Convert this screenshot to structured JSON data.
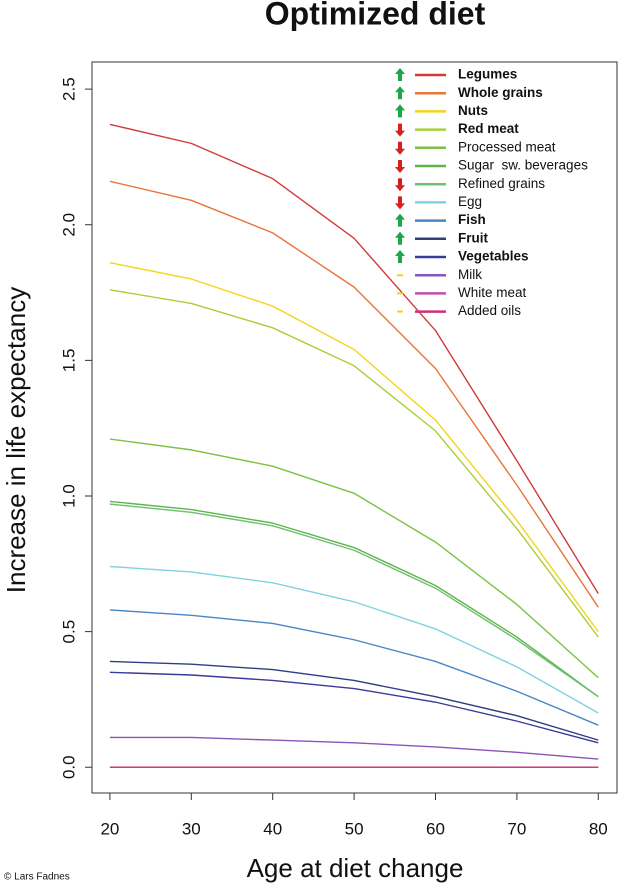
{
  "chart_data": {
    "type": "line",
    "title": "Optimized diet",
    "x_label": "Age at diet change",
    "y_label": "Increase in life expectancy",
    "credit": "© Lars Fadnes",
    "x": [
      20,
      30,
      40,
      50,
      60,
      70,
      80
    ],
    "xlim": [
      17.8,
      82.3
    ],
    "xticks": [
      20,
      30,
      40,
      50,
      60,
      70,
      80
    ],
    "ylim": [
      -0.095,
      2.6
    ],
    "yticks": [
      {
        "value": 0,
        "label": "0.0"
      },
      {
        "value": 0.5,
        "label": "0.5"
      },
      {
        "value": 1,
        "label": "1.0"
      },
      {
        "value": 1.5,
        "label": "1.5"
      },
      {
        "value": 2,
        "label": "2.0"
      },
      {
        "value": 2.5,
        "label": "2.5"
      }
    ],
    "grid": false,
    "legend": "top-right",
    "series": [
      {
        "name": "Legumes",
        "color": "#d23a3a",
        "trend": "up",
        "bold": true,
        "values": [
          2.37,
          2.3,
          2.17,
          1.95,
          1.61,
          1.13,
          0.64
        ]
      },
      {
        "name": "Whole grains",
        "color": "#e8743b",
        "trend": "up",
        "bold": true,
        "values": [
          2.16,
          2.09,
          1.97,
          1.77,
          1.47,
          1.04,
          0.59
        ]
      },
      {
        "name": "Nuts",
        "color": "#f2d51c",
        "trend": "up",
        "bold": true,
        "values": [
          1.86,
          1.8,
          1.7,
          1.54,
          1.28,
          0.91,
          0.5
        ]
      },
      {
        "name": "Red meat",
        "color": "#a9cf38",
        "trend": "down",
        "bold": true,
        "values": [
          1.76,
          1.71,
          1.62,
          1.48,
          1.24,
          0.88,
          0.48
        ]
      },
      {
        "name": "Processed meat",
        "color": "#7cc242",
        "trend": "down",
        "bold": false,
        "values": [
          1.21,
          1.17,
          1.11,
          1.01,
          0.83,
          0.6,
          0.33
        ]
      },
      {
        "name": "Sugar  sw. beverages",
        "color": "#5db54a",
        "trend": "down",
        "bold": false,
        "values": [
          0.98,
          0.95,
          0.9,
          0.81,
          0.67,
          0.48,
          0.26
        ]
      },
      {
        "name": "Refined grains",
        "color": "#6fbf73",
        "trend": "down",
        "bold": false,
        "values": [
          0.97,
          0.94,
          0.89,
          0.8,
          0.66,
          0.47,
          0.26
        ]
      },
      {
        "name": "Egg",
        "color": "#7fd3e0",
        "trend": "down",
        "bold": false,
        "values": [
          0.74,
          0.72,
          0.68,
          0.61,
          0.51,
          0.37,
          0.2
        ]
      },
      {
        "name": "Fish",
        "color": "#4a86c5",
        "trend": "up",
        "bold": true,
        "values": [
          0.58,
          0.56,
          0.53,
          0.47,
          0.39,
          0.28,
          0.155
        ]
      },
      {
        "name": "Fruit",
        "color": "#2e3f7f",
        "trend": "up",
        "bold": true,
        "values": [
          0.39,
          0.38,
          0.36,
          0.32,
          0.26,
          0.19,
          0.1
        ]
      },
      {
        "name": "Vegetables",
        "color": "#3a3a9a",
        "trend": "up",
        "bold": true,
        "values": [
          0.35,
          0.34,
          0.32,
          0.29,
          0.24,
          0.17,
          0.09
        ]
      },
      {
        "name": "Milk",
        "color": "#8a55b8",
        "trend": "neutral",
        "bold": false,
        "values": [
          0.11,
          0.11,
          0.1,
          0.09,
          0.075,
          0.055,
          0.03
        ]
      },
      {
        "name": "White meat",
        "color": "#c050b0",
        "trend": "neutral",
        "bold": false,
        "values": [
          0,
          0,
          0,
          0,
          0,
          0,
          0
        ]
      },
      {
        "name": "Added oils",
        "color": "#d0307a",
        "trend": "neutral",
        "bold": false,
        "values": [
          0,
          0,
          0,
          0,
          0,
          0,
          0
        ]
      }
    ]
  }
}
